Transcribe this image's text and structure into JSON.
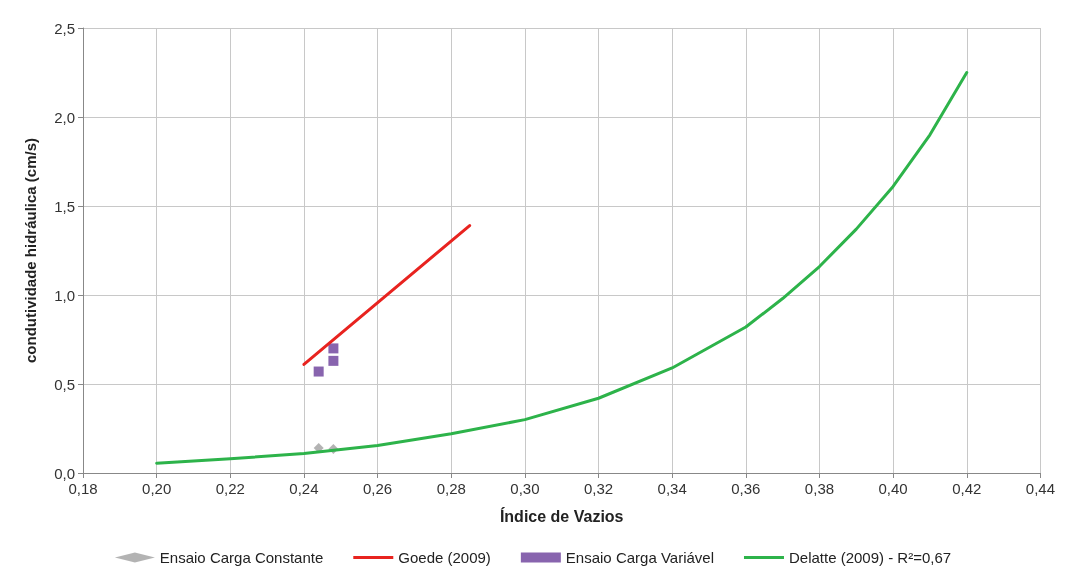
{
  "chart_data": {
    "type": "scatter",
    "xlabel": "Índice de Vazios",
    "ylabel": "condutividade hidráulica (cm/s)",
    "xlim": [
      0.18,
      0.44
    ],
    "xticks": [
      {
        "value": 0.18,
        "label": "0,18"
      },
      {
        "value": 0.2,
        "label": "0,20"
      },
      {
        "value": 0.22,
        "label": "0,22"
      },
      {
        "value": 0.24,
        "label": "0,24"
      },
      {
        "value": 0.26,
        "label": "0,26"
      },
      {
        "value": 0.28,
        "label": "0,28"
      },
      {
        "value": 0.3,
        "label": "0,30"
      },
      {
        "value": 0.32,
        "label": "0,32"
      },
      {
        "value": 0.34,
        "label": "0,34"
      },
      {
        "value": 0.36,
        "label": "0,36"
      },
      {
        "value": 0.38,
        "label": "0,38"
      },
      {
        "value": 0.4,
        "label": "0,40"
      },
      {
        "value": 0.42,
        "label": "0,42"
      },
      {
        "value": 0.44,
        "label": "0,44"
      }
    ],
    "ylim": [
      0,
      2.5
    ],
    "yticks": [
      {
        "value": 0,
        "label": "0,0"
      },
      {
        "value": 0.5,
        "label": "0,5"
      },
      {
        "value": 1,
        "label": "1,0"
      },
      {
        "value": 1.5,
        "label": "1,5"
      },
      {
        "value": 2,
        "label": "2,0"
      },
      {
        "value": 2.5,
        "label": "2,5"
      }
    ],
    "grid": true,
    "legend": "bottom",
    "series": [
      {
        "name": "Ensaio Carga Constante",
        "marker": "diamond",
        "color": "#a0a0a0",
        "x": [
          0.244,
          0.248
        ],
        "values": [
          0.14,
          0.135
        ]
      },
      {
        "name": "Goede (2009)",
        "type": "line",
        "marker": "none",
        "color": "#e8231f",
        "x": [
          0.24,
          0.285
        ],
        "values": [
          0.61,
          1.39
        ]
      },
      {
        "name": "Ensaio Carga Variável",
        "marker": "square",
        "color": "#6a3d9a",
        "x": [
          0.244,
          0.248,
          0.248
        ],
        "values": [
          0.57,
          0.63,
          0.7
        ]
      },
      {
        "name": "Delatte (2009) - R²=0,67",
        "type": "line",
        "marker": "none",
        "color": "#2db34a",
        "x": [
          0.2,
          0.22,
          0.24,
          0.26,
          0.28,
          0.3,
          0.32,
          0.34,
          0.36,
          0.37,
          0.38,
          0.39,
          0.4,
          0.41,
          0.42
        ],
        "values": [
          0.055,
          0.08,
          0.11,
          0.155,
          0.22,
          0.3,
          0.42,
          0.59,
          0.82,
          0.98,
          1.16,
          1.37,
          1.61,
          1.9,
          2.25
        ]
      }
    ]
  }
}
